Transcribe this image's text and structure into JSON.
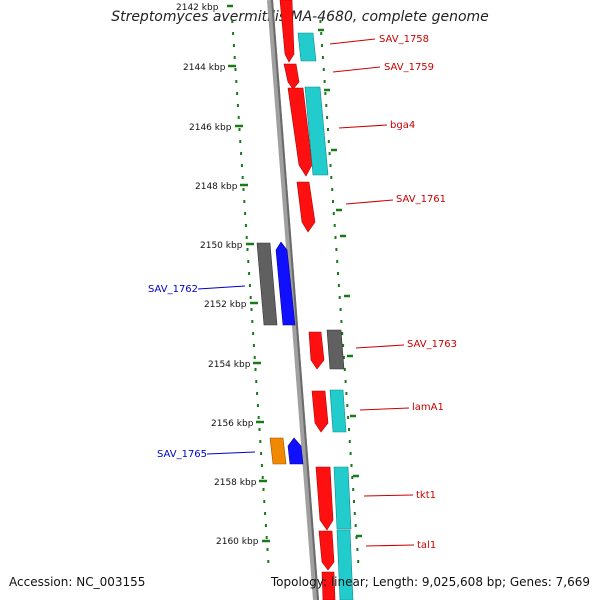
{
  "title": "Streptomyces avermitilis MA-4680, complete genome",
  "accession": "Accession: NC_003155",
  "summary": "Topology: linear; Length: 9,025,608 bp; Genes: 7,669",
  "colors": {
    "red": "#ff1010",
    "cyan": "#22cccc",
    "blue": "#1010ff",
    "gray": "#606060",
    "orange": "#f08800",
    "tick_green": "#1a7a1a",
    "label_red": "#cc0000",
    "label_blue": "#0000cc"
  },
  "kbp_labels": [
    "2142 kbp",
    "2144 kbp",
    "2146 kbp",
    "2148 kbp",
    "2150 kbp",
    "2152 kbp",
    "2154 kbp",
    "2156 kbp",
    "2158 kbp",
    "2160 kbp"
  ],
  "gene_labels": {
    "SAV_1758": "SAV_1758",
    "SAV_1759": "SAV_1759",
    "bga4": "bga4",
    "SAV_1761": "SAV_1761",
    "SAV_1762": "SAV_1762",
    "SAV_1763": "SAV_1763",
    "lamA1": "lamA1",
    "SAV_1765": "SAV_1765",
    "tkt1": "tkt1",
    "tal1": "tal1"
  }
}
